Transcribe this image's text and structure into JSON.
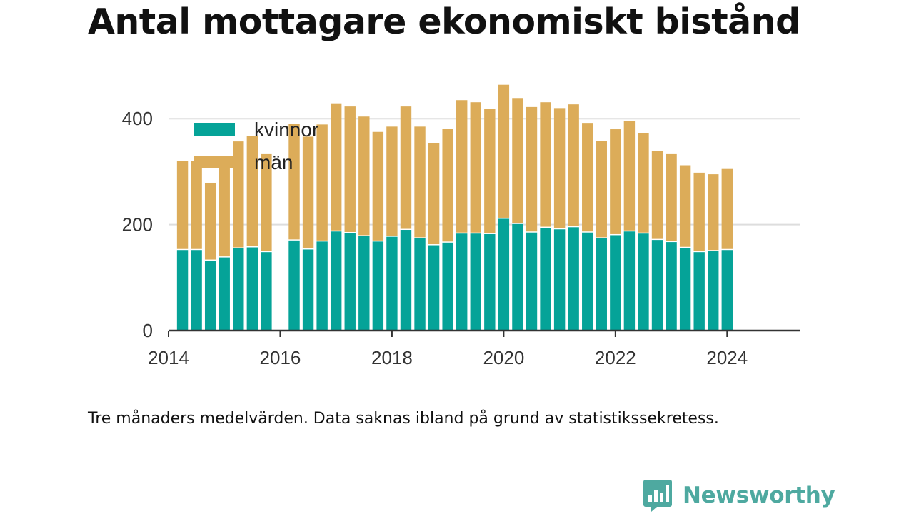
{
  "chart_data": {
    "type": "bar",
    "stacked": true,
    "title": "Antal mottagare ekonomiskt bistånd",
    "xlabel": "",
    "ylabel": "",
    "ylim": [
      0,
      500
    ],
    "yticks": [
      0,
      200,
      400
    ],
    "xlim": [
      2014,
      2025.3
    ],
    "xticks": [
      2014,
      2016,
      2018,
      2020,
      2022,
      2024
    ],
    "grid": true,
    "legend_position": "top-left",
    "x": [
      2014.25,
      2014.5,
      2014.75,
      2015.0,
      2015.25,
      2015.5,
      2015.75,
      2016.25,
      2016.5,
      2016.75,
      2017.0,
      2017.25,
      2017.5,
      2017.75,
      2018.0,
      2018.25,
      2018.5,
      2018.75,
      2019.0,
      2019.25,
      2019.5,
      2019.75,
      2020.0,
      2020.25,
      2020.5,
      2020.75,
      2021.0,
      2021.25,
      2021.5,
      2021.75,
      2022.0,
      2022.25,
      2022.5,
      2022.75,
      2023.0,
      2023.25,
      2023.5,
      2023.75,
      2024.0
    ],
    "series": [
      {
        "name": "kvinnor",
        "color": "#05a398",
        "values": [
          152,
          152,
          132,
          138,
          155,
          157,
          148,
          170,
          153,
          168,
          187,
          184,
          178,
          168,
          177,
          190,
          174,
          161,
          166,
          183,
          183,
          182,
          211,
          201,
          185,
          194,
          191,
          195,
          185,
          174,
          180,
          187,
          183,
          171,
          167,
          156,
          148,
          150,
          152
        ]
      },
      {
        "name": "män",
        "color": "#dcac59",
        "values": [
          168,
          168,
          147,
          179,
          202,
          210,
          185,
          220,
          213,
          221,
          242,
          239,
          226,
          207,
          208,
          233,
          211,
          193,
          215,
          252,
          248,
          237,
          253,
          238,
          237,
          237,
          229,
          232,
          207,
          184,
          200,
          208,
          189,
          168,
          166,
          156,
          150,
          145,
          153
        ]
      }
    ],
    "legend_labels": [
      "kvinnor",
      "män"
    ],
    "note": "Tre månaders medelvärden. Data saknas ibland på grund av statistikssekretess."
  },
  "branding": {
    "name": "Newsworthy",
    "icon": "newsworthy-logo-icon",
    "color": "#4ea9a0"
  }
}
